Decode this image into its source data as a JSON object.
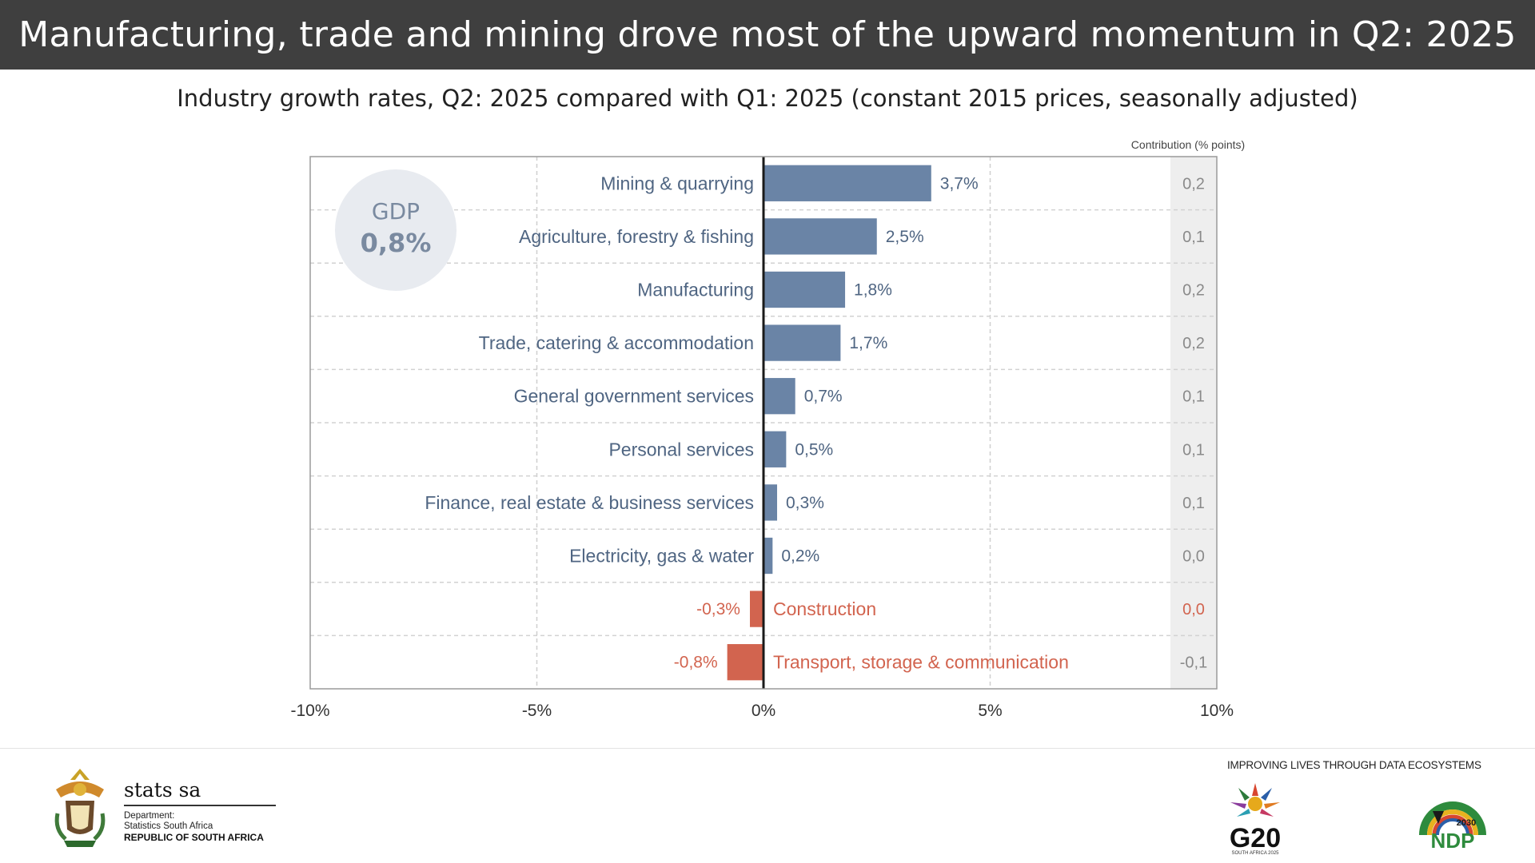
{
  "header": {
    "title": "Manufacturing, trade and mining drove most of the upward momentum in Q2: 2025"
  },
  "subtitle": "Industry growth rates, Q2: 2025 compared with Q1: 2025 (constant 2015 prices, seasonally adjusted)",
  "gdp": {
    "label": "GDP",
    "value": "0,8%"
  },
  "chart_data": {
    "type": "bar",
    "orientation": "horizontal",
    "title": "Industry growth rates, Q2: 2025 compared with Q1: 2025 (constant 2015 prices, seasonally adjusted)",
    "xlim": [
      -10,
      10
    ],
    "xticks": [
      -10,
      -5,
      0,
      5,
      10
    ],
    "xtick_labels": [
      "-10%",
      "-5%",
      "0%",
      "5%",
      "10%"
    ],
    "contribution_header": "Contribution (% points)",
    "colors": {
      "positive": "#6a84a6",
      "negative": "#d2644f",
      "positive_text": "#4f6582",
      "contribution_text": "#8a8a8a",
      "contribution_bg": "#eeeeee"
    },
    "categories": [
      "Mining & quarrying",
      "Agriculture, forestry & fishing",
      "Manufacturing",
      "Trade, catering & accommodation",
      "General government services",
      "Personal services",
      "Finance, real estate & business services",
      "Electricity, gas & water",
      "Construction",
      "Transport, storage & communication"
    ],
    "values": [
      3.7,
      2.5,
      1.8,
      1.7,
      0.7,
      0.5,
      0.3,
      0.2,
      -0.3,
      -0.8
    ],
    "value_labels": [
      "3,7%",
      "2,5%",
      "1,8%",
      "1,7%",
      "0,7%",
      "0,5%",
      "0,3%",
      "0,2%",
      "-0,3%",
      "-0,8%"
    ],
    "contributions": [
      "0,2",
      "0,1",
      "0,2",
      "0,2",
      "0,1",
      "0,1",
      "0,1",
      "0,0",
      "0,0",
      "-0,1"
    ]
  },
  "footer": {
    "tagline": "IMPROVING LIVES THROUGH DATA ECOSYSTEMS",
    "stats_name": "stats sa",
    "dept_line1": "Department:",
    "dept_line2": "Statistics South Africa",
    "dept_line3": "REPUBLIC OF SOUTH AFRICA",
    "g20_label": "G20",
    "g20_sub": "SOUTH AFRICA 2025",
    "ndp_label": "NDP",
    "ndp_year": "2030"
  }
}
